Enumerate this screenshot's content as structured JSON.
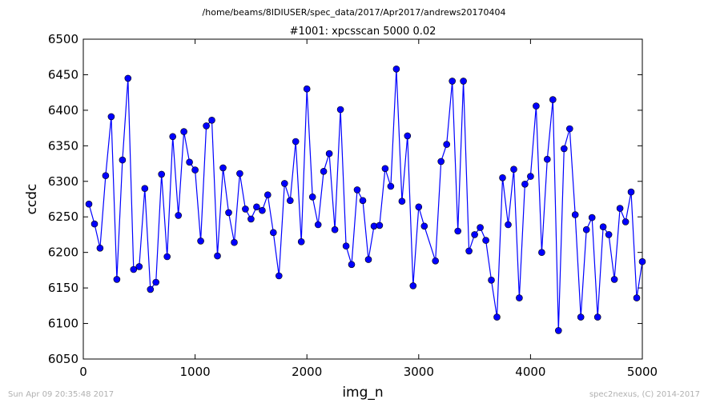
{
  "header": {
    "path": "/home/beams/8IDIUSER/spec_data/2017/Apr2017/andrews20170404"
  },
  "footer": {
    "timestamp": "Sun Apr 09 20:35:48 2017",
    "credit": "spec2nexus, (C) 2014-2017"
  },
  "chart_data": {
    "type": "line",
    "title": "#1001: xpcsscan 5000 0.02",
    "xlabel": "img_n",
    "ylabel": "ccdc",
    "xlim": [
      0,
      5000
    ],
    "ylim": [
      6050,
      6500
    ],
    "xticks": [
      0,
      1000,
      2000,
      3000,
      4000,
      5000
    ],
    "yticks": [
      6050,
      6100,
      6150,
      6200,
      6250,
      6300,
      6350,
      6400,
      6450,
      6500
    ],
    "grid": false,
    "legend": "none",
    "color": "#0000ff",
    "x": [
      50,
      100,
      150,
      200,
      250,
      300,
      350,
      400,
      450,
      500,
      550,
      600,
      650,
      700,
      750,
      800,
      850,
      900,
      950,
      1000,
      1050,
      1100,
      1150,
      1200,
      1250,
      1300,
      1350,
      1400,
      1450,
      1500,
      1550,
      1600,
      1650,
      1700,
      1750,
      1800,
      1850,
      1900,
      1950,
      2000,
      2050,
      2100,
      2150,
      2200,
      2250,
      2300,
      2350,
      2400,
      2450,
      2500,
      2550,
      2600,
      2650,
      2700,
      2750,
      2800,
      2850,
      2900,
      2950,
      3000,
      3050,
      3150,
      3200,
      3250,
      3300,
      3350,
      3400,
      3450,
      3500,
      3550,
      3600,
      3650,
      3700,
      3750,
      3800,
      3850,
      3900,
      3950,
      4000,
      4050,
      4100,
      4150,
      4200,
      4250,
      4300,
      4350,
      4400,
      4450,
      4500,
      4550,
      4600,
      4650,
      4700,
      4750,
      4800,
      4850,
      4900,
      4950,
      5000
    ],
    "y": [
      6268,
      6240,
      6206,
      6308,
      6391,
      6162,
      6330,
      6445,
      6176,
      6180,
      6290,
      6148,
      6158,
      6310,
      6194,
      6363,
      6252,
      6370,
      6327,
      6316,
      6216,
      6378,
      6386,
      6195,
      6319,
      6256,
      6214,
      6311,
      6261,
      6247,
      6264,
      6259,
      6281,
      6228,
      6167,
      6297,
      6273,
      6356,
      6215,
      6430,
      6278,
      6239,
      6314,
      6339,
      6232,
      6401,
      6209,
      6183,
      6288,
      6273,
      6190,
      6237,
      6238,
      6318,
      6293,
      6458,
      6272,
      6364,
      6153,
      6264,
      6237,
      6188,
      6328,
      6352,
      6441,
      6230,
      6441,
      6202,
      6225,
      6235,
      6217,
      6161,
      6109,
      6305,
      6239,
      6317,
      6136,
      6296,
      6307,
      6406,
      6200,
      6331,
      6415,
      6090,
      6346,
      6374,
      6253,
      6109,
      6232,
      6249,
      6109,
      6236,
      6225,
      6162,
      6262,
      6243,
      6285,
      6136,
      6187
    ]
  }
}
